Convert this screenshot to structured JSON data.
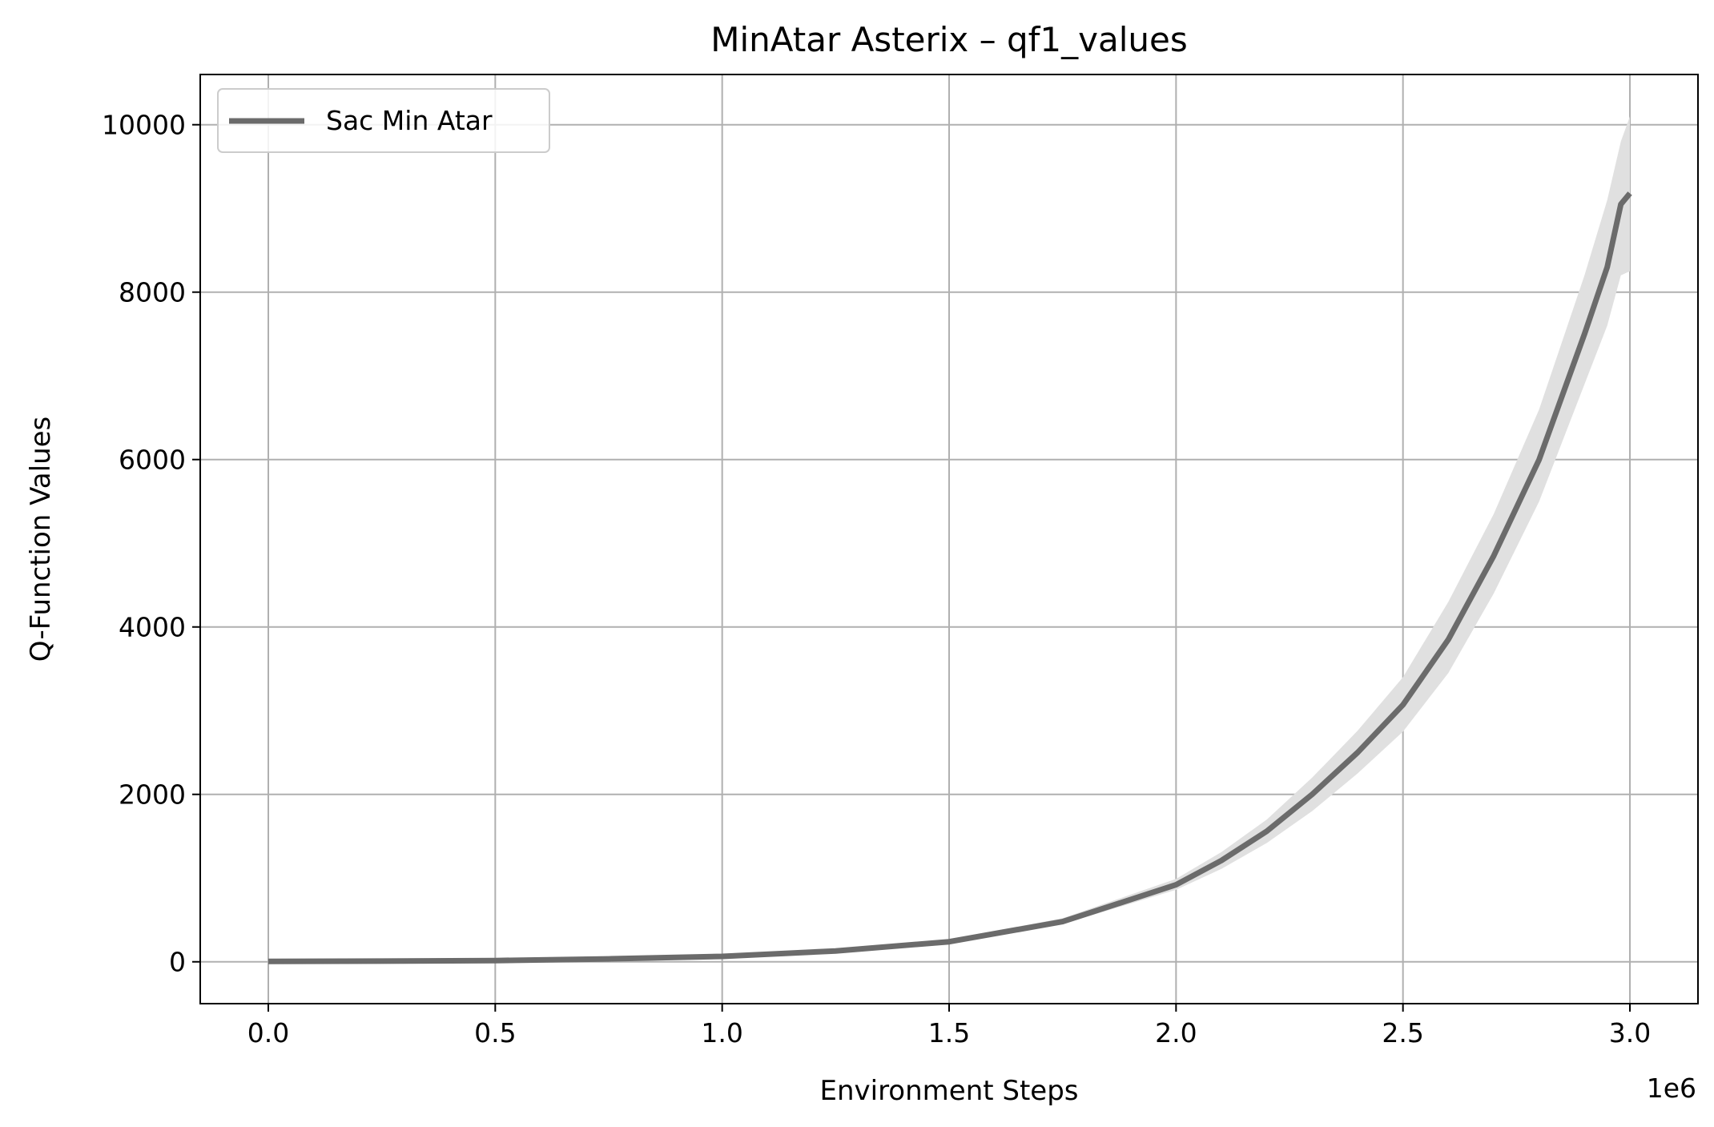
{
  "chart_data": {
    "type": "line",
    "title": "MinAtar Asterix – qf1_values",
    "xlabel": "Environment Steps",
    "ylabel": "Q-Function Values",
    "x_offset_label": "1e6",
    "xlim": [
      -150000,
      3150000
    ],
    "ylim": [
      -500,
      10600
    ],
    "x_ticks": [
      0,
      500000,
      1000000,
      1500000,
      2000000,
      2500000,
      3000000
    ],
    "x_tick_labels": [
      "0.0",
      "0.5",
      "1.0",
      "1.5",
      "2.0",
      "2.5",
      "3.0"
    ],
    "y_ticks": [
      0,
      2000,
      4000,
      6000,
      8000,
      10000
    ],
    "y_tick_labels": [
      "0",
      "2000",
      "4000",
      "6000",
      "8000",
      "10000"
    ],
    "grid": true,
    "legend_position": "top-left",
    "series": [
      {
        "name": "Sac Min Atar",
        "color": "#6b6b6b",
        "band_color": "#e0e0e0",
        "x": [
          0,
          250000,
          500000,
          750000,
          1000000,
          1250000,
          1500000,
          1750000,
          2000000,
          2100000,
          2200000,
          2300000,
          2400000,
          2500000,
          2600000,
          2700000,
          2800000,
          2900000,
          2950000,
          2980000,
          3000000
        ],
        "y": [
          5,
          8,
          15,
          35,
          65,
          130,
          240,
          480,
          920,
          1210,
          1560,
          2000,
          2500,
          3070,
          3850,
          4850,
          6000,
          7500,
          8300,
          9050,
          9180
        ],
        "lower": [
          0,
          3,
          8,
          25,
          50,
          110,
          210,
          450,
          860,
          1110,
          1420,
          1800,
          2250,
          2750,
          3450,
          4400,
          5500,
          6900,
          7600,
          8200,
          8250
        ],
        "upper": [
          10,
          13,
          22,
          45,
          80,
          150,
          270,
          520,
          990,
          1310,
          1700,
          2200,
          2760,
          3400,
          4300,
          5350,
          6600,
          8200,
          9100,
          9800,
          10100
        ]
      }
    ]
  }
}
